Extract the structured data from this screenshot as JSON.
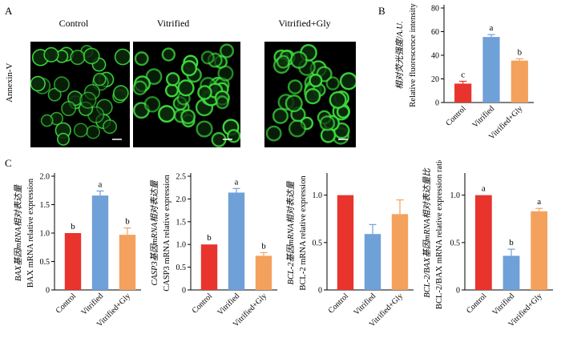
{
  "figure": {
    "panel_a": {
      "letter": "A",
      "conditions": [
        "Control",
        "Vitrified",
        "Vitrified+Gly"
      ],
      "row_label": "Annexin-V",
      "stain_color": "#3ddc3d"
    },
    "panel_b_letter": "B",
    "panel_c_letter": "C"
  },
  "chart_data": [
    {
      "id": "B",
      "type": "bar",
      "categories": [
        "Control",
        "Vitrified",
        "Vitrified+Gly"
      ],
      "values": [
        16,
        55.5,
        35.5
      ],
      "errors": [
        2,
        2,
        1.5
      ],
      "sig_letters": [
        "c",
        "a",
        "b"
      ],
      "colors": [
        "#e8342d",
        "#6fa0d8",
        "#f4a15d"
      ],
      "ylabel_cn": "相对荧光强度/A.U.",
      "ylabel_en": "Relative fluorescence intensity",
      "ylim": [
        0,
        80
      ],
      "yticks": [
        0,
        20,
        40,
        60,
        80
      ],
      "ytick_labels": [
        "0",
        "20",
        "40",
        "60",
        "80"
      ]
    },
    {
      "id": "C1",
      "type": "bar",
      "categories": [
        "Control",
        "Vitrified",
        "Vitrified+Gly"
      ],
      "values": [
        1.0,
        1.66,
        0.97
      ],
      "errors": [
        0,
        0.08,
        0.12
      ],
      "sig_letters": [
        "b",
        "a",
        "b"
      ],
      "colors": [
        "#e8342d",
        "#6fa0d8",
        "#f4a15d"
      ],
      "ylabel_cn": "BAX基因mRNA相对表达量",
      "ylabel_en": "BAX mRNA relative expression",
      "ylim": [
        0,
        2.0
      ],
      "yticks": [
        0,
        0.5,
        1.0,
        1.5,
        2.0
      ],
      "ytick_labels": [
        "0",
        "0.5",
        "1.0",
        "1.5",
        "2.0"
      ]
    },
    {
      "id": "C2",
      "type": "bar",
      "categories": [
        "Control",
        "Vitrified",
        "Vitrified+Gly"
      ],
      "values": [
        1.0,
        2.14,
        0.75
      ],
      "errors": [
        0,
        0.09,
        0.07
      ],
      "sig_letters": [
        "b",
        "a",
        "b"
      ],
      "colors": [
        "#e8342d",
        "#6fa0d8",
        "#f4a15d"
      ],
      "ylabel_cn": "CASP3基因mRNA相对表达量",
      "ylabel_en": "CASP3 mRNA relative expression",
      "ylim": [
        0,
        2.5
      ],
      "yticks": [
        0,
        0.5,
        1.0,
        1.5,
        2.0,
        2.5
      ],
      "ytick_labels": [
        "0",
        "0.5",
        "1.0",
        "1.5",
        "2.0",
        "2.5"
      ]
    },
    {
      "id": "C3",
      "type": "bar",
      "categories": [
        "Control",
        "Vitrified",
        "Vitrified+Gly"
      ],
      "values": [
        1.0,
        0.59,
        0.8
      ],
      "errors": [
        0,
        0.1,
        0.15
      ],
      "sig_letters": [
        "",
        "",
        ""
      ],
      "colors": [
        "#e8342d",
        "#6fa0d8",
        "#f4a15d"
      ],
      "ylabel_cn": "BCL-2基因mRNA相对表达量",
      "ylabel_en": "BCL-2 mRNA relative expression",
      "ylim": [
        0,
        1.2
      ],
      "yticks": [
        0,
        0.5,
        1.0
      ],
      "ytick_labels": [
        "0",
        "0.5",
        "1.0"
      ]
    },
    {
      "id": "C4",
      "type": "bar",
      "categories": [
        "Control",
        "Vitrified",
        "Vitrified+Gly"
      ],
      "values": [
        1.0,
        0.36,
        0.83
      ],
      "errors": [
        0,
        0.07,
        0.03
      ],
      "sig_letters": [
        "a",
        "b",
        "a"
      ],
      "colors": [
        "#e8342d",
        "#6fa0d8",
        "#f4a15d"
      ],
      "ylabel_cn": "BCL-2/BAX基因mRNA相对表达量比",
      "ylabel_en": "BCL-2/BAX mRNA relative expression ratio",
      "ylim": [
        0,
        1.2
      ],
      "yticks": [
        0,
        0.5,
        1.0
      ],
      "ytick_labels": [
        "0",
        "0.5",
        "1.0"
      ]
    }
  ]
}
